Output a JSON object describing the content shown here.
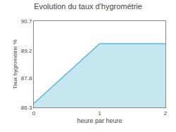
{
  "chart_data": {
    "type": "area",
    "title": "Evolution du taux d'hygrométrie",
    "xlabel": "heure par heure",
    "ylabel": "Taux hygrométrie %",
    "x": [
      0,
      1,
      2
    ],
    "values": [
      86.5,
      89.55,
      89.55
    ],
    "xlim": [
      0,
      2
    ],
    "ylim": [
      86.3,
      90.7
    ],
    "xticks": [
      0,
      1,
      2
    ],
    "yticks": [
      86.3,
      87.8,
      89.2,
      90.7
    ],
    "color": "#5bb8d4",
    "grid": false
  }
}
